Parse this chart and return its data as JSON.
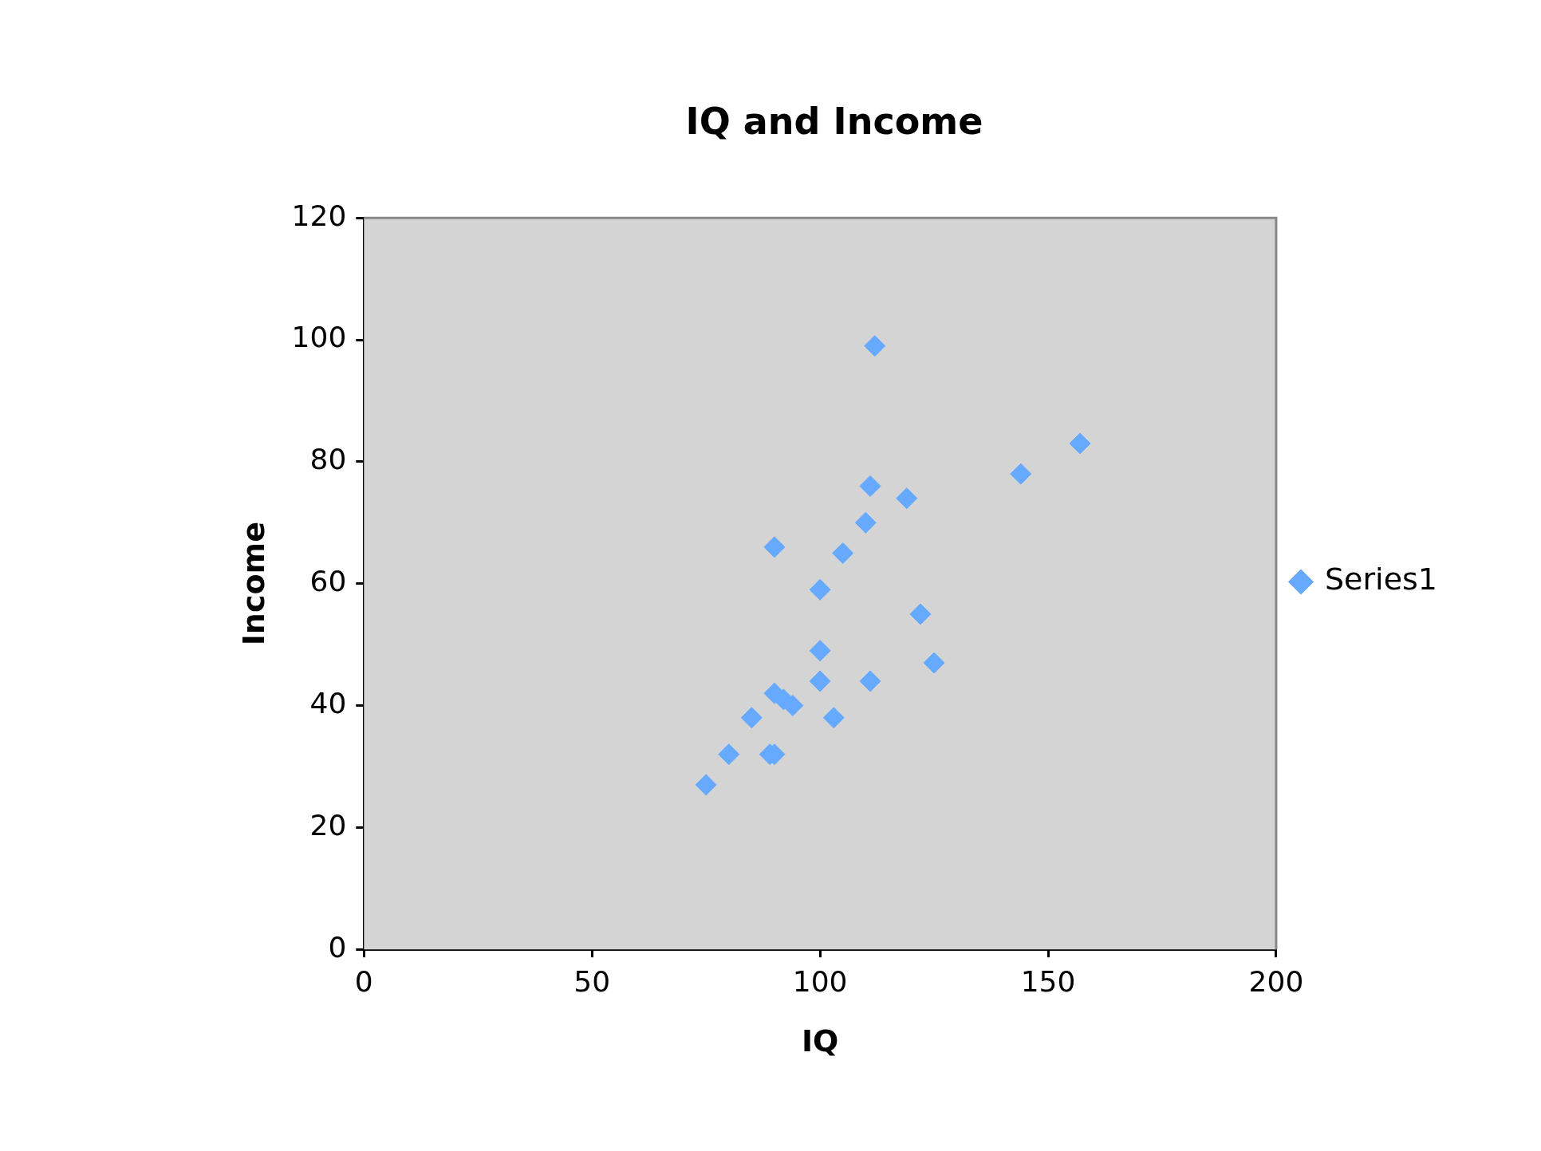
{
  "chart_data": {
    "type": "scatter",
    "title": "IQ and Income",
    "xlabel": "IQ",
    "ylabel": "Income",
    "x": [
      75,
      80,
      85,
      89,
      90,
      90,
      90,
      92,
      94,
      100,
      100,
      100,
      103,
      105,
      110,
      111,
      111,
      112,
      119,
      122,
      125,
      144,
      157
    ],
    "series": [
      {
        "name": "Series1",
        "color": "#66aaff",
        "values": [
          27,
          32,
          38,
          32,
          32,
          66,
          42,
          41,
          40,
          59,
          49,
          44,
          38,
          65,
          70,
          76,
          44,
          99,
          74,
          55,
          47,
          78,
          83
        ]
      }
    ],
    "xlim": [
      0,
      200
    ],
    "xticks": [
      0,
      50,
      100,
      150,
      200
    ],
    "ylim": [
      0,
      120
    ],
    "yticks": [
      0,
      20,
      40,
      60,
      80,
      100,
      120
    ],
    "legend": "right",
    "marker": "diamond"
  }
}
